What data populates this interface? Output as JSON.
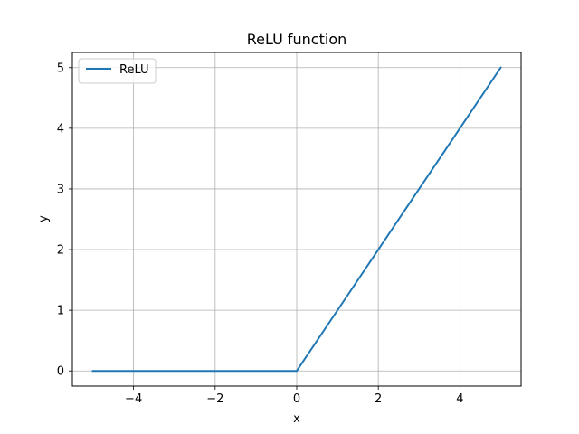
{
  "chart_data": {
    "type": "line",
    "title": "ReLU function",
    "xlabel": "x",
    "ylabel": "y",
    "xlim": [
      -5.5,
      5.5
    ],
    "ylim": [
      -0.25,
      5.25
    ],
    "grid": true,
    "legend_position": "upper-left",
    "x_ticks": [
      -4,
      -2,
      0,
      2,
      4
    ],
    "x_tick_labels": [
      "−4",
      "−2",
      "0",
      "2",
      "4"
    ],
    "y_ticks": [
      0,
      1,
      2,
      3,
      4,
      5
    ],
    "y_tick_labels": [
      "0",
      "1",
      "2",
      "3",
      "4",
      "5"
    ],
    "series": [
      {
        "name": "ReLU",
        "color": "#1f77b4",
        "x": [
          -5,
          0,
          5
        ],
        "y": [
          0,
          0,
          5
        ]
      }
    ]
  }
}
